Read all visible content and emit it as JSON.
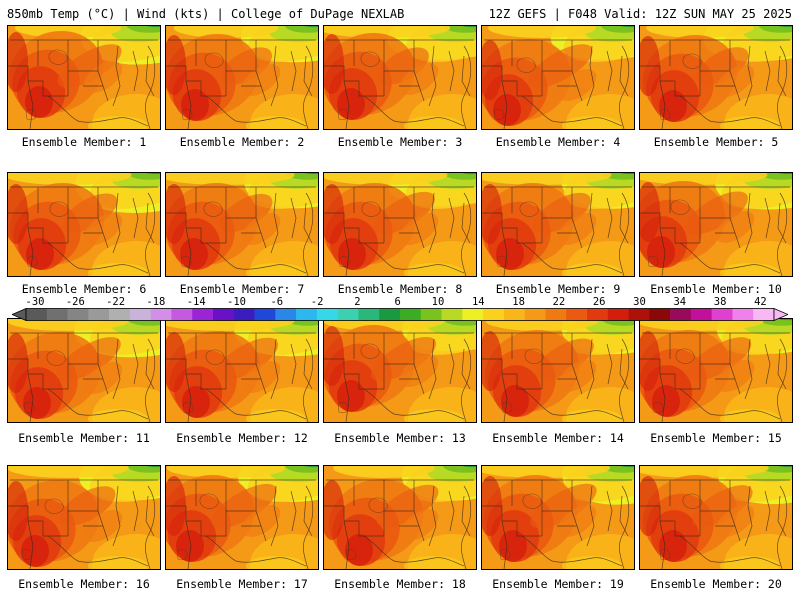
{
  "header": {
    "left": "850mb Temp (°C) | Wind (kts) | College of DuPage NEXLAB",
    "right": "12Z GEFS | F048 Valid: 12Z SUN MAY 25 2025"
  },
  "panels": [
    {
      "label": "Ensemble Member: 1"
    },
    {
      "label": "Ensemble Member: 2"
    },
    {
      "label": "Ensemble Member: 3"
    },
    {
      "label": "Ensemble Member: 4"
    },
    {
      "label": "Ensemble Member: 5"
    },
    {
      "label": "Ensemble Member: 6"
    },
    {
      "label": "Ensemble Member: 7"
    },
    {
      "label": "Ensemble Member: 8"
    },
    {
      "label": "Ensemble Member: 9"
    },
    {
      "label": "Ensemble Member: 10"
    },
    {
      "label": "Ensemble Member: 11"
    },
    {
      "label": "Ensemble Member: 12"
    },
    {
      "label": "Ensemble Member: 13"
    },
    {
      "label": "Ensemble Member: 14"
    },
    {
      "label": "Ensemble Member: 15"
    },
    {
      "label": "Ensemble Member: 16"
    },
    {
      "label": "Ensemble Member: 17"
    },
    {
      "label": "Ensemble Member: 18"
    },
    {
      "label": "Ensemble Member: 19"
    },
    {
      "label": "Ensemble Member: 20"
    }
  ],
  "colorbar": {
    "ticks": [
      "-30",
      "-26",
      "-22",
      "-18",
      "-14",
      "-10",
      "-6",
      "-2",
      "2",
      "6",
      "10",
      "14",
      "18",
      "22",
      "26",
      "30",
      "34",
      "38",
      "42"
    ],
    "colors": [
      "#5a5a5a",
      "#707070",
      "#858585",
      "#9a9a9a",
      "#b0b0b0",
      "#c9b3da",
      "#d38ee8",
      "#c55ae0",
      "#9a24d6",
      "#6a10c8",
      "#3a1cc0",
      "#1f48d8",
      "#2a86e8",
      "#2bb8ef",
      "#36d8e8",
      "#3ad0b0",
      "#2ab87a",
      "#1a9a40",
      "#3cac24",
      "#7ac21e",
      "#b8da24",
      "#eef026",
      "#fad21e",
      "#f9b61a",
      "#f59a16",
      "#f07a12",
      "#ea5a10",
      "#e23a0e",
      "#d41e0c",
      "#b0100a",
      "#8c0808",
      "#9a0a5a",
      "#c2109a",
      "#e040d0",
      "#f080ec",
      "#f8b8f4"
    ]
  }
}
